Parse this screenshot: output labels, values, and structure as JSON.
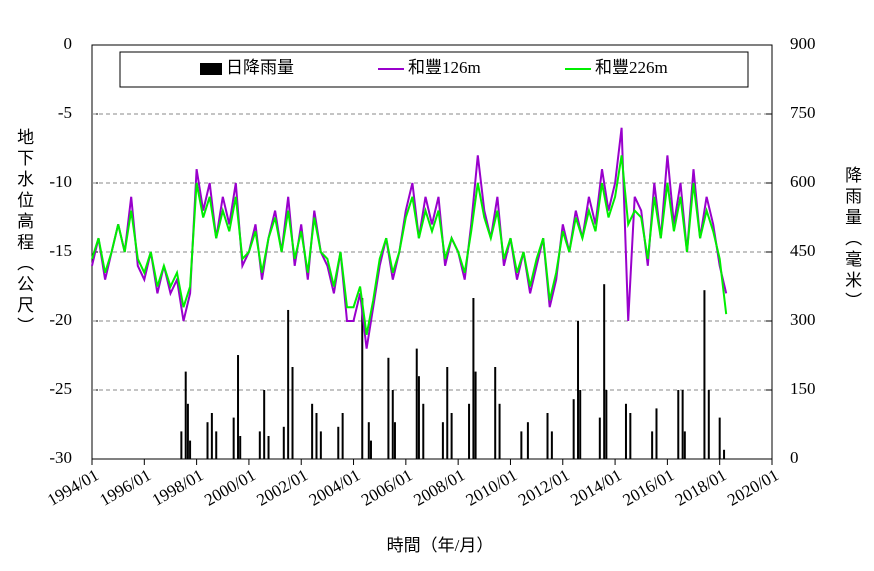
{
  "chart_data": {
    "type": "combo",
    "x_label": "時間（年/月）",
    "y_label": "地下水位高程（公尺）",
    "y2_label": "降雨量（毫米）",
    "xlim": [
      "1994/01",
      "2020/01"
    ],
    "xticks": [
      "1994/01",
      "1996/01",
      "1998/01",
      "2000/01",
      "2002/01",
      "2004/01",
      "2006/01",
      "2008/01",
      "2010/01",
      "2012/01",
      "2014/01",
      "2016/01",
      "2018/01",
      "2020/01"
    ],
    "ylim": [
      -30,
      0
    ],
    "yticks": [
      -30,
      -25,
      -20,
      -15,
      -10,
      -5,
      0
    ],
    "y2lim": [
      0,
      900
    ],
    "y2ticks": [
      0,
      150,
      300,
      450,
      600,
      750,
      900
    ],
    "grid": true,
    "legend": "top",
    "series": [
      {
        "name": "日降雨量",
        "type": "bar",
        "axis": "y2",
        "color": "#000000",
        "x": [
          "1997/06",
          "1997/08",
          "1997/09",
          "1997/10",
          "1998/06",
          "1998/08",
          "1998/10",
          "1999/06",
          "1999/08",
          "1999/09",
          "2000/06",
          "2000/08",
          "2000/10",
          "2001/05",
          "2001/07",
          "2001/09",
          "2002/06",
          "2002/08",
          "2002/10",
          "2003/06",
          "2003/08",
          "2004/05",
          "2004/08",
          "2004/09",
          "2005/05",
          "2005/07",
          "2005/08",
          "2006/06",
          "2006/07",
          "2006/09",
          "2007/06",
          "2007/08",
          "2007/10",
          "2008/06",
          "2008/08",
          "2008/09",
          "2009/06",
          "2009/08",
          "2010/06",
          "2010/09",
          "2011/06",
          "2011/08",
          "2012/06",
          "2012/08",
          "2012/09",
          "2013/06",
          "2013/08",
          "2013/09",
          "2014/06",
          "2014/08",
          "2015/06",
          "2015/08",
          "2016/06",
          "2016/08",
          "2016/09",
          "2017/06",
          "2017/08",
          "2018/01",
          "2018/03"
        ],
        "values": [
          60,
          190,
          120,
          40,
          80,
          100,
          60,
          90,
          226,
          50,
          60,
          150,
          50,
          70,
          324,
          200,
          120,
          100,
          60,
          70,
          100,
          350,
          80,
          40,
          220,
          150,
          80,
          240,
          180,
          120,
          80,
          200,
          100,
          120,
          350,
          190,
          200,
          120,
          60,
          80,
          100,
          60,
          130,
          300,
          150,
          90,
          380,
          150,
          120,
          100,
          60,
          110,
          150,
          150,
          60,
          367,
          150,
          90,
          20
        ]
      },
      {
        "name": "和豐126m",
        "type": "line",
        "axis": "y",
        "color": "#9900cc",
        "x": [
          "1994/01",
          "1994/04",
          "1994/07",
          "1994/10",
          "1995/01",
          "1995/04",
          "1995/07",
          "1995/10",
          "1996/01",
          "1996/04",
          "1996/07",
          "1996/10",
          "1997/01",
          "1997/04",
          "1997/07",
          "1997/10",
          "1998/01",
          "1998/04",
          "1998/07",
          "1998/10",
          "1999/01",
          "1999/04",
          "1999/07",
          "1999/10",
          "2000/01",
          "2000/04",
          "2000/07",
          "2000/10",
          "2001/01",
          "2001/04",
          "2001/07",
          "2001/10",
          "2002/01",
          "2002/04",
          "2002/07",
          "2002/10",
          "2003/01",
          "2003/04",
          "2003/07",
          "2003/10",
          "2004/01",
          "2004/04",
          "2004/07",
          "2004/10",
          "2005/01",
          "2005/04",
          "2005/07",
          "2005/10",
          "2006/01",
          "2006/04",
          "2006/07",
          "2006/10",
          "2007/01",
          "2007/04",
          "2007/07",
          "2007/10",
          "2008/01",
          "2008/04",
          "2008/07",
          "2008/10",
          "2009/01",
          "2009/04",
          "2009/07",
          "2009/10",
          "2010/01",
          "2010/04",
          "2010/07",
          "2010/10",
          "2011/01",
          "2011/04",
          "2011/07",
          "2011/10",
          "2012/01",
          "2012/04",
          "2012/07",
          "2012/10",
          "2013/01",
          "2013/04",
          "2013/07",
          "2013/10",
          "2014/01",
          "2014/04",
          "2014/07",
          "2014/10",
          "2015/01",
          "2015/04",
          "2015/07",
          "2015/10",
          "2016/01",
          "2016/04",
          "2016/07",
          "2016/10",
          "2017/01",
          "2017/04",
          "2017/07",
          "2017/10",
          "2018/01",
          "2018/04"
        ],
        "values": [
          -16,
          -14,
          -17,
          -15,
          -13,
          -15,
          -11,
          -16,
          -17,
          -15,
          -18,
          -16,
          -18,
          -17,
          -20,
          -18,
          -9,
          -12,
          -10,
          -14,
          -11,
          -13,
          -10,
          -16,
          -15,
          -13,
          -17,
          -14,
          -12,
          -15,
          -11,
          -16,
          -13,
          -17,
          -12,
          -15,
          -16,
          -18,
          -15,
          -20,
          -20,
          -18,
          -22,
          -19,
          -16,
          -14,
          -17,
          -15,
          -12,
          -10,
          -14,
          -11,
          -13,
          -11,
          -16,
          -14,
          -15,
          -17,
          -13,
          -8,
          -12,
          -14,
          -11,
          -16,
          -14,
          -17,
          -15,
          -18,
          -16,
          -14,
          -19,
          -17,
          -13,
          -15,
          -12,
          -14,
          -11,
          -13,
          -9,
          -12,
          -10,
          -6,
          -20,
          -11,
          -12,
          -16,
          -10,
          -14,
          -8,
          -13,
          -10,
          -15,
          -9,
          -14,
          -11,
          -13,
          -16,
          -18
        ]
      },
      {
        "name": "和豐226m",
        "type": "line",
        "axis": "y",
        "color": "#00ee00",
        "x": [
          "1994/01",
          "1994/04",
          "1994/07",
          "1994/10",
          "1995/01",
          "1995/04",
          "1995/07",
          "1995/10",
          "1996/01",
          "1996/04",
          "1996/07",
          "1996/10",
          "1997/01",
          "1997/04",
          "1997/07",
          "1997/10",
          "1998/01",
          "1998/04",
          "1998/07",
          "1998/10",
          "1999/01",
          "1999/04",
          "1999/07",
          "1999/10",
          "2000/01",
          "2000/04",
          "2000/07",
          "2000/10",
          "2001/01",
          "2001/04",
          "2001/07",
          "2001/10",
          "2002/01",
          "2002/04",
          "2002/07",
          "2002/10",
          "2003/01",
          "2003/04",
          "2003/07",
          "2003/10",
          "2004/01",
          "2004/04",
          "2004/07",
          "2004/10",
          "2005/01",
          "2005/04",
          "2005/07",
          "2005/10",
          "2006/01",
          "2006/04",
          "2006/07",
          "2006/10",
          "2007/01",
          "2007/04",
          "2007/07",
          "2007/10",
          "2008/01",
          "2008/04",
          "2008/07",
          "2008/10",
          "2009/01",
          "2009/04",
          "2009/07",
          "2009/10",
          "2010/01",
          "2010/04",
          "2010/07",
          "2010/10",
          "2011/01",
          "2011/04",
          "2011/07",
          "2011/10",
          "2012/01",
          "2012/04",
          "2012/07",
          "2012/10",
          "2013/01",
          "2013/04",
          "2013/07",
          "2013/10",
          "2014/01",
          "2014/04",
          "2014/07",
          "2014/10",
          "2015/01",
          "2015/04",
          "2015/07",
          "2015/10",
          "2016/01",
          "2016/04",
          "2016/07",
          "2016/10",
          "2017/01",
          "2017/04",
          "2017/07",
          "2017/10",
          "2018/01",
          "2018/04"
        ],
        "values": [
          -15.5,
          -14,
          -16.5,
          -15,
          -13,
          -15,
          -12,
          -15.5,
          -16.5,
          -15,
          -17.5,
          -16,
          -17.5,
          -16.5,
          -19,
          -17.5,
          -10,
          -12.5,
          -11,
          -14,
          -12,
          -13.5,
          -11,
          -15.5,
          -15,
          -13.5,
          -16.5,
          -14,
          -12.5,
          -15,
          -12,
          -15.5,
          -13.5,
          -16.5,
          -12.5,
          -15,
          -15.5,
          -17.5,
          -15,
          -19,
          -19,
          -17.5,
          -21,
          -18.5,
          -15.5,
          -14,
          -16.5,
          -15,
          -12.5,
          -11,
          -14,
          -12,
          -13.5,
          -12,
          -15.5,
          -14,
          -15,
          -16.5,
          -13.5,
          -10,
          -12.5,
          -14,
          -12,
          -15.5,
          -14,
          -16.5,
          -15,
          -17.5,
          -15.5,
          -14,
          -18.5,
          -16.5,
          -13.5,
          -15,
          -12.5,
          -14,
          -12,
          -13.5,
          -10,
          -12.5,
          -11,
          -8,
          -13,
          -12,
          -12.5,
          -15.5,
          -11,
          -14,
          -10,
          -13.5,
          -11,
          -15,
          -10,
          -14,
          -12,
          -13.5,
          -15.5,
          -19.5
        ]
      }
    ]
  }
}
